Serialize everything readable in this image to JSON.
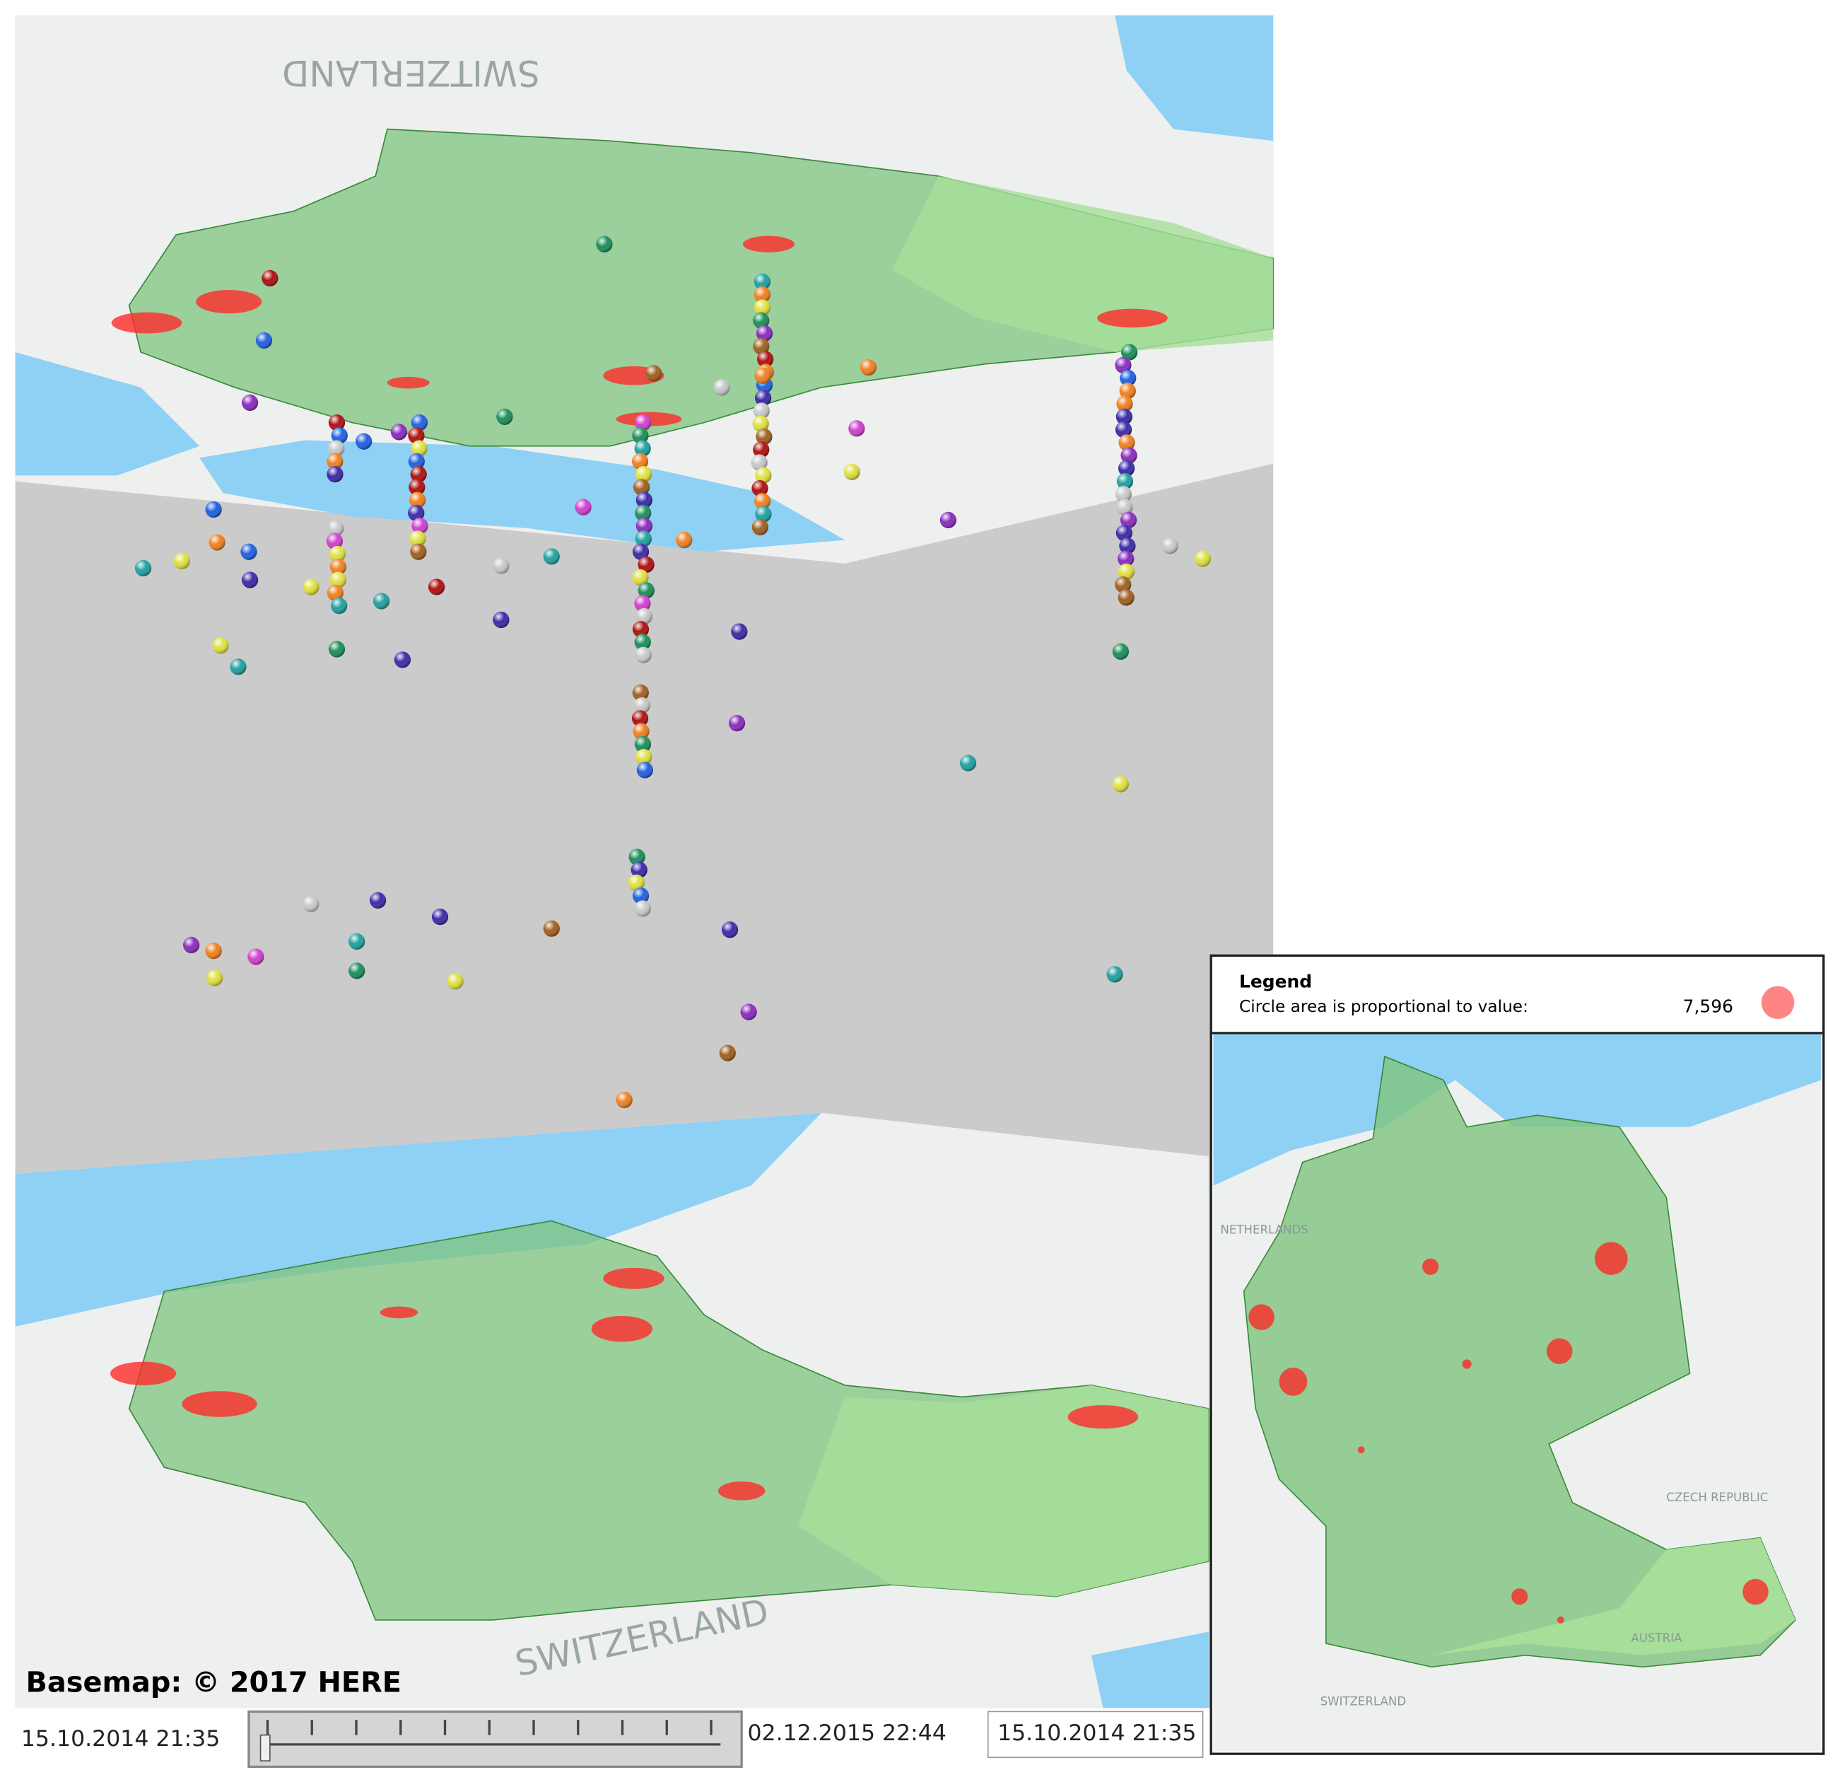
{
  "attribution": "Basemap: © 2017 HERE",
  "time_slider": {
    "start": "15.10.2014 21:35",
    "end": "02.12.2015 22:44",
    "current": "15.10.2014 21:35"
  },
  "legend": {
    "title": "Legend",
    "description": "Circle area is proportional to value:",
    "value": "7,596"
  },
  "map_labels": {
    "top": "SWITZERLAND",
    "bottom": "SWITZERLAND",
    "inset": [
      "NETHERLANDS",
      "CZECH REPUBLIC",
      "AUSTRIA",
      "SWITZERLAND"
    ]
  }
}
